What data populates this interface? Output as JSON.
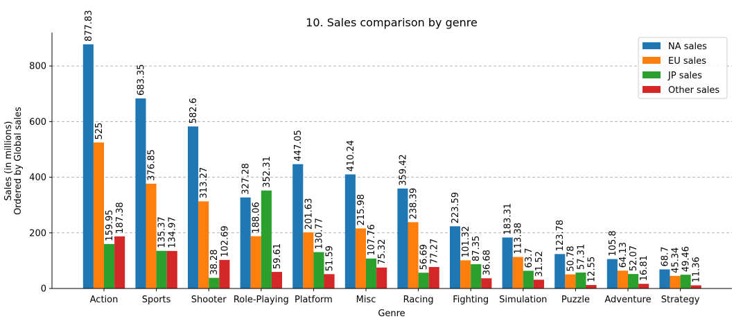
{
  "chart_data": {
    "type": "bar",
    "title": "10. Sales comparison by genre",
    "xlabel": "Genre",
    "ylabel_lines": [
      "Sales (in millions)",
      "Ordered by Global sales"
    ],
    "categories": [
      "Action",
      "Sports",
      "Shooter",
      "Role-Playing",
      "Platform",
      "Misc",
      "Racing",
      "Fighting",
      "Simulation",
      "Puzzle",
      "Adventure",
      "Strategy"
    ],
    "ylim": [
      0,
      920
    ],
    "yticks": [
      0,
      200,
      400,
      600,
      800
    ],
    "grid": "horizontal-dashed",
    "legend": "top-right",
    "series": [
      {
        "name": "NA sales",
        "color": "#1f77b4",
        "values": [
          877.83,
          683.35,
          582.6,
          327.28,
          447.05,
          410.24,
          359.42,
          223.59,
          183.31,
          123.78,
          105.8,
          68.7
        ]
      },
      {
        "name": "EU sales",
        "color": "#ff7f0e",
        "values": [
          525,
          376.85,
          313.27,
          188.06,
          201.63,
          215.98,
          238.39,
          101.32,
          113.38,
          50.78,
          64.13,
          45.34
        ]
      },
      {
        "name": "JP sales",
        "color": "#2ca02c",
        "values": [
          159.95,
          135.37,
          38.28,
          352.31,
          130.77,
          107.76,
          56.69,
          87.35,
          63.7,
          57.31,
          52.07,
          49.46
        ]
      },
      {
        "name": "Other sales",
        "color": "#d62728",
        "values": [
          187.38,
          134.97,
          102.69,
          59.61,
          51.59,
          75.32,
          77.27,
          36.68,
          31.52,
          12.55,
          16.81,
          11.36
        ]
      }
    ]
  }
}
